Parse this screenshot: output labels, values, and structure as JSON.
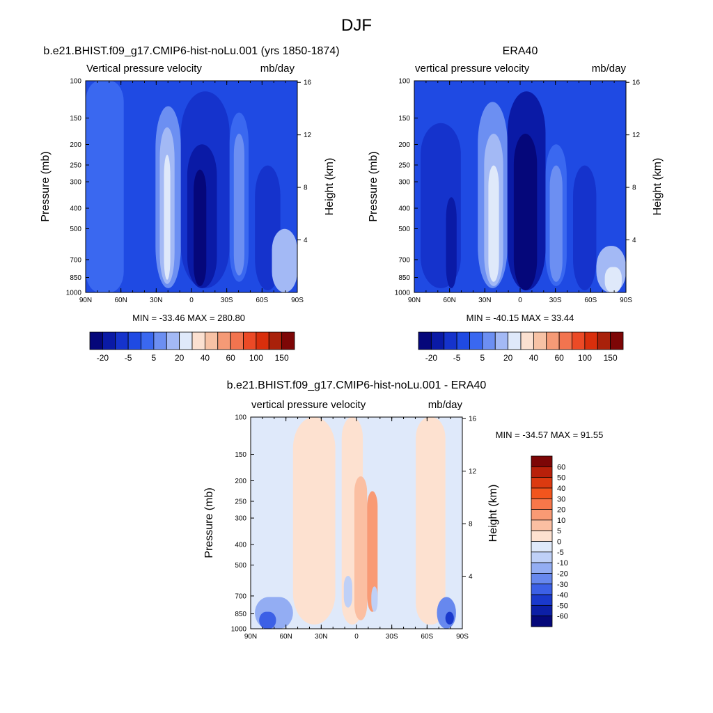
{
  "figure": {
    "title": "DJF"
  },
  "panels": [
    {
      "id": "model",
      "title": "b.e21.BHIST.f09_g17.CMIP6-hist-noLu.001 (yrs 1850-1874)",
      "left_label": "Vertical pressure velocity",
      "right_label": "mb/day",
      "ylabel": "Pressure (mb)",
      "y2label": "Height (km)",
      "stats": "MIN = -33.46  MAX = 280.80"
    },
    {
      "id": "obs",
      "title": "ERA40",
      "left_label": "vertical pressure velocity",
      "right_label": "mb/day",
      "ylabel": "Pressure (mb)",
      "y2label": "Height (km)",
      "stats": "MIN = -40.15  MAX =  33.44"
    },
    {
      "id": "diff",
      "title": "b.e21.BHIST.f09_g17.CMIP6-hist-noLu.001 - ERA40",
      "left_label": "vertical pressure velocity",
      "right_label": "mb/day",
      "ylabel": "Pressure (mb)",
      "y2label": "Height (km)",
      "stats": "MIN = -34.57  MAX =  91.55"
    }
  ],
  "chart_data": [
    {
      "type": "heatmap",
      "title": "b.e21.BHIST.f09_g17.CMIP6-hist-noLu.001 (yrs 1850-1874)",
      "xlabel": "",
      "ylabel": "Pressure (mb)",
      "y2label": "Height (km)",
      "x_ticks": [
        "90N",
        "60N",
        "30N",
        "0",
        "30S",
        "60S",
        "90S"
      ],
      "y_ticks": [
        100,
        150,
        200,
        250,
        300,
        400,
        500,
        700,
        850,
        1000
      ],
      "y2_ticks": [
        4,
        8,
        12,
        16
      ],
      "ylim": [
        1000,
        100
      ],
      "y_scale": "log",
      "xlim": [
        90,
        -90
      ],
      "units": "mb/day",
      "levels": [
        -30,
        -20,
        -10,
        -5,
        0,
        5,
        10,
        20,
        30,
        40,
        50,
        60,
        80,
        100,
        120,
        150
      ],
      "colorbar_labels": [
        "-20",
        "-5",
        "5",
        "20",
        "40",
        "60",
        "100",
        "150"
      ],
      "colorbar_orientation": "horizontal",
      "colors": [
        "#05077a",
        "#0a1aa6",
        "#1533cc",
        "#1f4ae3",
        "#3a68f0",
        "#6c8ff2",
        "#a3b9f5",
        "#dfe9fa",
        "#fbe0d0",
        "#f7c2a5",
        "#f59a76",
        "#f2744f",
        "#ec4a26",
        "#d92f0c",
        "#a9210a",
        "#7d0606"
      ],
      "min": -33.46,
      "max": 280.8
    },
    {
      "type": "heatmap",
      "title": "ERA40",
      "xlabel": "",
      "ylabel": "Pressure (mb)",
      "y2label": "Height (km)",
      "x_ticks": [
        "90N",
        "60N",
        "30N",
        "0",
        "30S",
        "60S",
        "90S"
      ],
      "y_ticks": [
        100,
        150,
        200,
        250,
        300,
        400,
        500,
        700,
        850,
        1000
      ],
      "y2_ticks": [
        4,
        8,
        12,
        16
      ],
      "ylim": [
        1000,
        100
      ],
      "y_scale": "log",
      "xlim": [
        90,
        -90
      ],
      "units": "mb/day",
      "levels": [
        -30,
        -20,
        -10,
        -5,
        0,
        5,
        10,
        20,
        30,
        40,
        50,
        60,
        80,
        100,
        120,
        150
      ],
      "colorbar_labels": [
        "-20",
        "-5",
        "5",
        "20",
        "40",
        "60",
        "100",
        "150"
      ],
      "colorbar_orientation": "horizontal",
      "colors": [
        "#05077a",
        "#0a1aa6",
        "#1533cc",
        "#1f4ae3",
        "#3a68f0",
        "#6c8ff2",
        "#a3b9f5",
        "#dfe9fa",
        "#fbe0d0",
        "#f7c2a5",
        "#f59a76",
        "#f2744f",
        "#ec4a26",
        "#d92f0c",
        "#a9210a",
        "#7d0606"
      ],
      "min": -40.15,
      "max": 33.44
    },
    {
      "type": "heatmap",
      "title": "b.e21.BHIST.f09_g17.CMIP6-hist-noLu.001 - ERA40",
      "xlabel": "",
      "ylabel": "Pressure (mb)",
      "y2label": "Height (km)",
      "x_ticks": [
        "90N",
        "60N",
        "30N",
        "0",
        "30S",
        "60S",
        "90S"
      ],
      "y_ticks": [
        100,
        150,
        200,
        250,
        300,
        400,
        500,
        700,
        850,
        1000
      ],
      "y2_ticks": [
        4,
        8,
        12,
        16
      ],
      "ylim": [
        1000,
        100
      ],
      "y_scale": "log",
      "xlim": [
        90,
        -90
      ],
      "units": "mb/day",
      "levels": [
        60,
        50,
        40,
        30,
        20,
        10,
        5,
        0,
        -5,
        -10,
        -20,
        -30,
        -40,
        -50,
        -60
      ],
      "colorbar_labels": [
        "60",
        "50",
        "40",
        "30",
        "20",
        "10",
        "5",
        "0",
        "-5",
        "-10",
        "-20",
        "-30",
        "-40",
        "-50",
        "-60"
      ],
      "colorbar_orientation": "vertical",
      "colors": [
        "#7d0606",
        "#b8200a",
        "#dc3a10",
        "#f2551d",
        "#f7774a",
        "#f99a74",
        "#fbbfa2",
        "#fde1d0",
        "#dfe9fa",
        "#bfd0f7",
        "#93adf3",
        "#6788ee",
        "#3c60e6",
        "#1a39cc",
        "#0c1fa6",
        "#05087a"
      ],
      "min": -34.57,
      "max": 91.55
    }
  ]
}
